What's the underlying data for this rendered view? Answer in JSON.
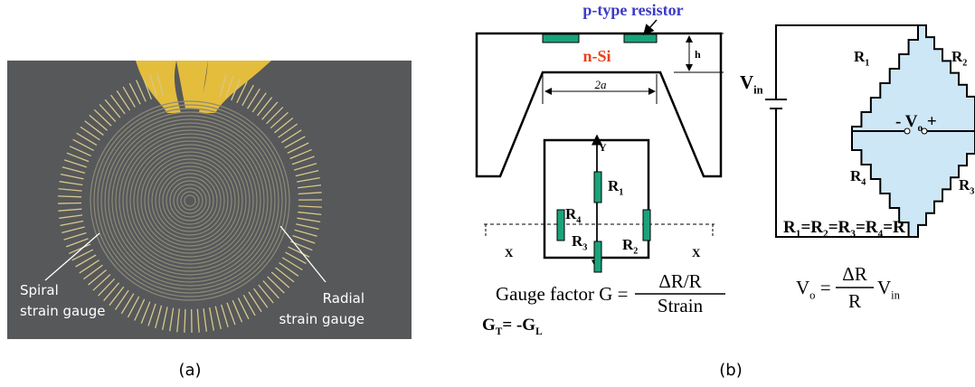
{
  "panel_a": {
    "label": "(a)",
    "annotations": [
      {
        "lines": [
          "Spiral",
          "strain gauge"
        ]
      },
      {
        "lines": [
          "Radial",
          "strain gauge"
        ]
      }
    ]
  },
  "panel_b": {
    "label": "(b)",
    "cross_section": {
      "resistor_label": "p-type resistor",
      "substrate_label": "n-Si",
      "thickness_label": "h",
      "width_label": "2a"
    },
    "membrane": {
      "axis_y": "Y",
      "axis_x": [
        "X",
        "X"
      ],
      "resistors": [
        [
          {
            "text": "R"
          },
          {
            "sub": "1"
          }
        ],
        [
          {
            "text": "R"
          },
          {
            "sub": "2"
          }
        ],
        [
          {
            "text": "R"
          },
          {
            "sub": "3"
          }
        ],
        [
          {
            "text": "R"
          },
          {
            "sub": "4"
          }
        ]
      ]
    },
    "gauge_factor": {
      "lhs": "Gauge factor G =",
      "numerator": "ΔR/R",
      "denominator": "Strain"
    },
    "relation": [
      {
        "text": "G"
      },
      {
        "sub": "T"
      },
      {
        "text": "= -G"
      },
      {
        "sub": "L"
      }
    ],
    "bridge": {
      "source": [
        {
          "text": "V"
        },
        {
          "sub": "in"
        }
      ],
      "resistors": [
        [
          {
            "text": "R"
          },
          {
            "sub": "1"
          }
        ],
        [
          {
            "text": "R"
          },
          {
            "sub": "2"
          }
        ],
        [
          {
            "text": "R"
          },
          {
            "sub": "3"
          }
        ],
        [
          {
            "text": "R"
          },
          {
            "sub": "4"
          }
        ]
      ],
      "output": [
        {
          "text": "-"
        },
        {
          "text": " V"
        },
        {
          "sub": "o"
        },
        {
          "text": " +"
        }
      ]
    },
    "equality": [
      {
        "text": "R"
      },
      {
        "sub": "1"
      },
      {
        "text": "=R"
      },
      {
        "sub": "2"
      },
      {
        "text": "=R"
      },
      {
        "sub": "3"
      },
      {
        "text": "=R"
      },
      {
        "sub": "4"
      },
      {
        "text": "=R"
      }
    ],
    "output_equation": {
      "lhs": [
        {
          "text": "V"
        },
        {
          "sub": "o"
        },
        {
          "text": " ="
        }
      ],
      "numerator": "ΔR",
      "denominator": "R",
      "rhs": [
        {
          "text": "V"
        },
        {
          "sub": "in"
        }
      ]
    }
  }
}
